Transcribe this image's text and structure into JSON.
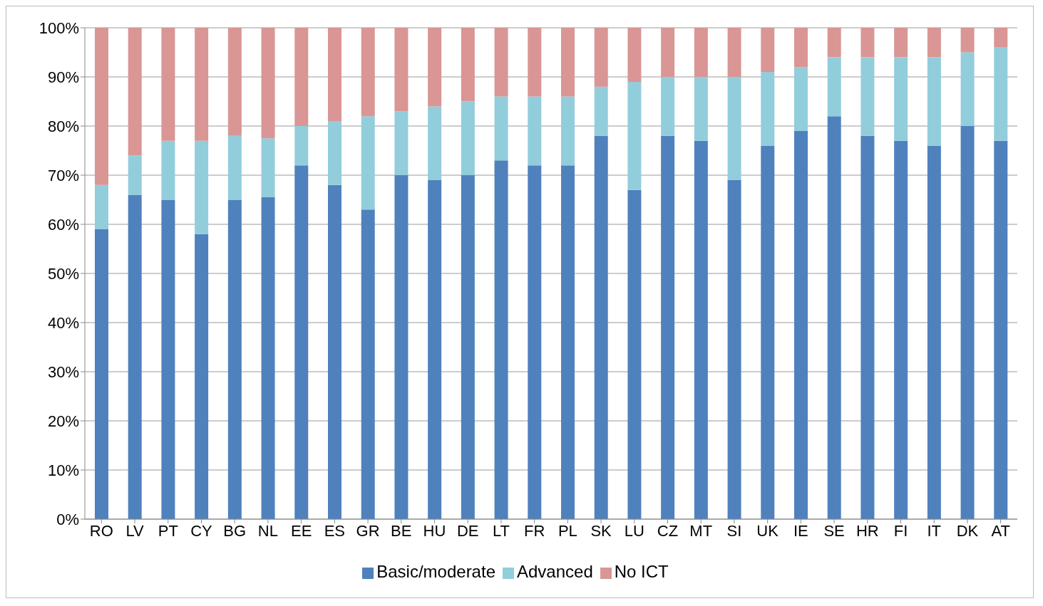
{
  "chart_data": {
    "type": "bar",
    "stacked": true,
    "categories": [
      "RO",
      "LV",
      "PT",
      "CY",
      "BG",
      "NL",
      "EE",
      "ES",
      "GR",
      "BE",
      "HU",
      "DE",
      "LT",
      "FR",
      "PL",
      "SK",
      "LU",
      "CZ",
      "MT",
      "SI",
      "UK",
      "IE",
      "SE",
      "HR",
      "FI",
      "IT",
      "DK",
      "AT"
    ],
    "series": [
      {
        "name": "Basic/moderate",
        "color": "#4f81bd",
        "values": [
          59,
          66,
          65,
          58,
          65,
          65.5,
          72,
          68,
          63,
          70,
          69,
          70,
          73,
          72,
          72,
          78,
          67,
          78,
          77,
          69,
          76,
          79,
          82,
          78,
          77,
          76,
          80,
          77
        ]
      },
      {
        "name": "Advanced",
        "color": "#92cddc",
        "values": [
          9,
          8,
          12,
          19,
          13,
          12,
          8,
          13,
          19,
          13,
          15,
          15,
          13,
          14,
          14,
          10,
          22,
          12,
          13,
          21,
          15,
          13,
          12,
          16,
          17,
          18,
          15,
          19
        ]
      },
      {
        "name": "No ICT",
        "color": "#d99694",
        "values": [
          32,
          26,
          23,
          23,
          22,
          22.5,
          20,
          19,
          18,
          17,
          16,
          15,
          14,
          14,
          14,
          12,
          11,
          10,
          10,
          10,
          9,
          8,
          6,
          6,
          6,
          6,
          5,
          4
        ]
      }
    ],
    "ylim": [
      0,
      100
    ],
    "yticks": [
      {
        "value": 0,
        "label": "0%"
      },
      {
        "value": 10,
        "label": "10%"
      },
      {
        "value": 20,
        "label": "20%"
      },
      {
        "value": 30,
        "label": "30%"
      },
      {
        "value": 40,
        "label": "40%"
      },
      {
        "value": 50,
        "label": "50%"
      },
      {
        "value": 60,
        "label": "60%"
      },
      {
        "value": 70,
        "label": "70%"
      },
      {
        "value": 80,
        "label": "80%"
      },
      {
        "value": 90,
        "label": "90%"
      },
      {
        "value": 100,
        "label": "100%"
      }
    ],
    "grid": "y",
    "legend": "bottom"
  }
}
